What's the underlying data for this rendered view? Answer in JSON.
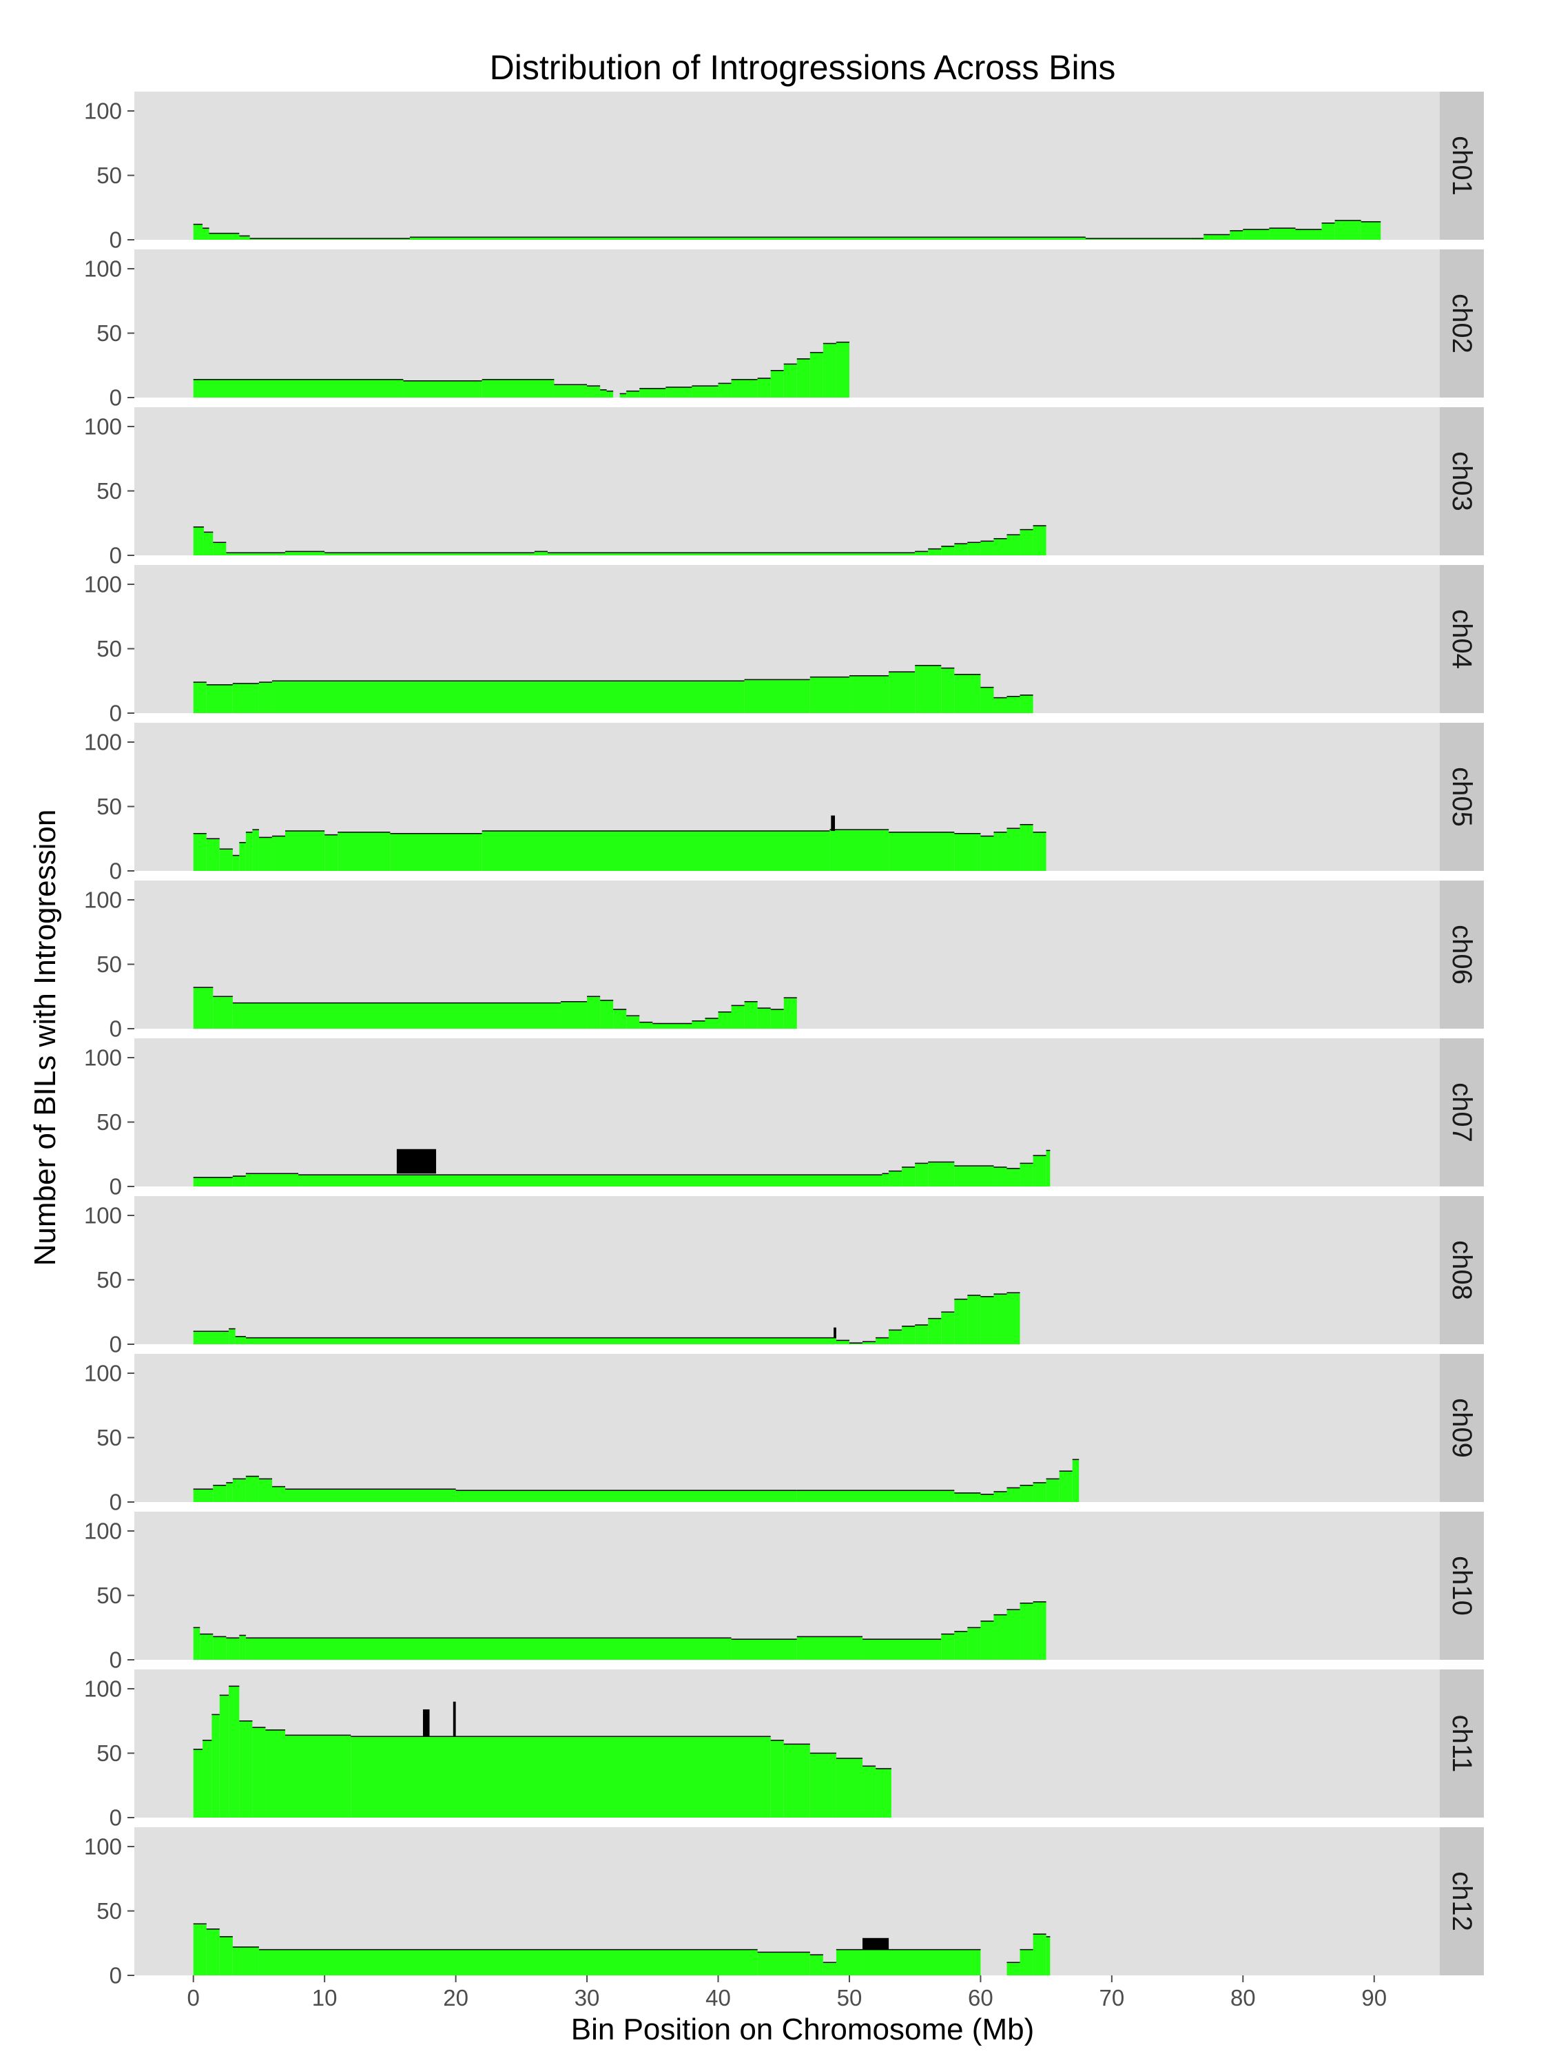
{
  "chart_data": {
    "type": "bar",
    "title": "Distribution of Introgressions Across Bins",
    "xlabel": "Bin Position on Chromosome (Mb)",
    "ylabel": "Number of BILs with Introgression",
    "xlim": [
      -4.5,
      95
    ],
    "ylim": [
      0,
      115
    ],
    "x_ticks": [
      0,
      10,
      20,
      30,
      40,
      50,
      60,
      70,
      80,
      90
    ],
    "y_ticks": [
      0,
      50,
      100
    ],
    "grid": false,
    "colors": {
      "panel": "#e0e0e0",
      "strip": "#c8c8c8",
      "bar": "#22ff10",
      "outline": "#000000"
    },
    "panels": [
      {
        "name": "ch01",
        "bins": [
          [
            0,
            0.7,
            12
          ],
          [
            0.7,
            1.2,
            9
          ],
          [
            1.2,
            3.5,
            5
          ],
          [
            3.5,
            4.3,
            3
          ],
          [
            4.3,
            16.5,
            1
          ],
          [
            16.5,
            68,
            2
          ],
          [
            68,
            76,
            1
          ],
          [
            76,
            77,
            1
          ],
          [
            77,
            79,
            4
          ],
          [
            79,
            80,
            7
          ],
          [
            80,
            82,
            8
          ],
          [
            82,
            84,
            9
          ],
          [
            84,
            86,
            8
          ],
          [
            86,
            87,
            13
          ],
          [
            87,
            89,
            15
          ],
          [
            89,
            90.5,
            14
          ]
        ]
      },
      {
        "name": "ch02",
        "bins": [
          [
            0,
            16,
            14
          ],
          [
            16,
            22,
            13
          ],
          [
            22,
            27.5,
            14
          ],
          [
            27.5,
            30,
            10
          ],
          [
            30,
            31,
            9
          ],
          [
            31,
            31.5,
            6
          ],
          [
            31.5,
            32,
            5
          ],
          [
            32.5,
            33,
            3
          ],
          [
            33,
            34,
            5
          ],
          [
            34,
            36,
            7
          ],
          [
            36,
            38,
            8
          ],
          [
            38,
            40,
            9
          ],
          [
            40,
            41,
            11
          ],
          [
            41,
            43,
            14
          ],
          [
            43,
            44,
            15
          ],
          [
            44,
            45,
            21
          ],
          [
            45,
            46,
            26
          ],
          [
            46,
            47,
            30
          ],
          [
            47,
            48,
            35
          ],
          [
            48,
            49,
            42
          ],
          [
            49,
            50,
            43
          ]
        ]
      },
      {
        "name": "ch03",
        "bins": [
          [
            0,
            0.8,
            22
          ],
          [
            0.8,
            1.5,
            18
          ],
          [
            1.5,
            2.5,
            10
          ],
          [
            2.5,
            7,
            2
          ],
          [
            7,
            10,
            3
          ],
          [
            10,
            26,
            2
          ],
          [
            26,
            27,
            3
          ],
          [
            27,
            55,
            2
          ],
          [
            55,
            56,
            3
          ],
          [
            56,
            57,
            5
          ],
          [
            57,
            58,
            7
          ],
          [
            58,
            59,
            9
          ],
          [
            59,
            60,
            10
          ],
          [
            60,
            61,
            11
          ],
          [
            61,
            62,
            13
          ],
          [
            62,
            63,
            16
          ],
          [
            63,
            64,
            20
          ],
          [
            64,
            65,
            23
          ]
        ]
      },
      {
        "name": "ch04",
        "bins": [
          [
            0,
            1,
            24
          ],
          [
            1,
            3,
            22
          ],
          [
            3,
            5,
            23
          ],
          [
            5,
            6,
            24
          ],
          [
            6,
            42,
            25
          ],
          [
            42,
            47,
            26
          ],
          [
            47,
            50,
            28
          ],
          [
            50,
            53,
            29
          ],
          [
            53,
            55,
            32
          ],
          [
            55,
            57,
            37
          ],
          [
            57,
            58,
            35
          ],
          [
            58,
            60,
            30
          ],
          [
            60,
            61,
            20
          ],
          [
            61,
            62,
            12
          ],
          [
            62,
            63,
            13
          ],
          [
            63,
            64,
            14
          ]
        ]
      },
      {
        "name": "ch05",
        "bins": [
          [
            0,
            1,
            29
          ],
          [
            1,
            2,
            25
          ],
          [
            2,
            3,
            17
          ],
          [
            3,
            3.5,
            12
          ],
          [
            3.5,
            4,
            22
          ],
          [
            4,
            4.5,
            30
          ],
          [
            4.5,
            5,
            32
          ],
          [
            5,
            6,
            26
          ],
          [
            6,
            7,
            27
          ],
          [
            7,
            10,
            31
          ],
          [
            10,
            11,
            28
          ],
          [
            11,
            15,
            30
          ],
          [
            15,
            22,
            29
          ],
          [
            22,
            48.5,
            31
          ],
          [
            48.5,
            53,
            32
          ],
          [
            53,
            58,
            30
          ],
          [
            58,
            60,
            29
          ],
          [
            60,
            61,
            27
          ],
          [
            61,
            62,
            30
          ],
          [
            62,
            63,
            33
          ],
          [
            63,
            64,
            36
          ],
          [
            64,
            65,
            30
          ]
        ]
      },
      {
        "name": "ch06",
        "bins": [
          [
            0,
            1.5,
            32
          ],
          [
            1.5,
            3,
            25
          ],
          [
            3,
            28,
            20
          ],
          [
            28,
            30,
            21
          ],
          [
            30,
            31,
            25
          ],
          [
            31,
            32,
            22
          ],
          [
            32,
            33,
            15
          ],
          [
            33,
            34,
            10
          ],
          [
            34,
            35,
            5
          ],
          [
            35,
            38,
            4
          ],
          [
            38,
            39,
            6
          ],
          [
            39,
            40,
            8
          ],
          [
            40,
            41,
            13
          ],
          [
            41,
            42,
            18
          ],
          [
            42,
            43,
            21
          ],
          [
            43,
            44,
            16
          ],
          [
            44,
            45,
            15
          ],
          [
            45,
            46,
            24
          ]
        ]
      },
      {
        "name": "ch07",
        "bins": [
          [
            0,
            3,
            7
          ],
          [
            3,
            4,
            8
          ],
          [
            4,
            8,
            10
          ],
          [
            8,
            52.5,
            9
          ],
          [
            52.5,
            53,
            10
          ],
          [
            53,
            54,
            12
          ],
          [
            54,
            55,
            15
          ],
          [
            55,
            56,
            18
          ],
          [
            56,
            58,
            19
          ],
          [
            58,
            61,
            16
          ],
          [
            61,
            62,
            15
          ],
          [
            62,
            63,
            14
          ],
          [
            63,
            64,
            18
          ],
          [
            64,
            65,
            24
          ],
          [
            65,
            65.3,
            28
          ]
        ]
      },
      {
        "name": "ch08",
        "bins": [
          [
            0,
            2.7,
            10
          ],
          [
            2.7,
            3.2,
            12
          ],
          [
            3.2,
            4,
            6
          ],
          [
            4,
            49,
            5
          ],
          [
            49,
            50,
            3
          ],
          [
            50,
            51,
            1
          ],
          [
            51,
            52,
            2
          ],
          [
            52,
            53,
            5
          ],
          [
            53,
            54,
            11
          ],
          [
            54,
            55,
            14
          ],
          [
            55,
            56,
            15
          ],
          [
            56,
            57,
            20
          ],
          [
            57,
            58,
            25
          ],
          [
            58,
            59,
            35
          ],
          [
            59,
            60,
            38
          ],
          [
            60,
            61,
            37
          ],
          [
            61,
            62,
            39
          ],
          [
            62,
            63,
            40
          ]
        ]
      },
      {
        "name": "ch09",
        "bins": [
          [
            0,
            1.5,
            10
          ],
          [
            1.5,
            2.5,
            13
          ],
          [
            2.5,
            3,
            15
          ],
          [
            3,
            4,
            18
          ],
          [
            4,
            5,
            20
          ],
          [
            5,
            6,
            18
          ],
          [
            6,
            7,
            12
          ],
          [
            7,
            20,
            10
          ],
          [
            20,
            46,
            9
          ],
          [
            46,
            58,
            9
          ],
          [
            58,
            60,
            7
          ],
          [
            60,
            61,
            6
          ],
          [
            61,
            62,
            8
          ],
          [
            62,
            63,
            11
          ],
          [
            63,
            64,
            13
          ],
          [
            64,
            65,
            15
          ],
          [
            65,
            66,
            18
          ],
          [
            66,
            67,
            24
          ],
          [
            67,
            67.5,
            33
          ]
        ]
      },
      {
        "name": "ch10",
        "bins": [
          [
            0,
            0.5,
            25
          ],
          [
            0.5,
            1.5,
            20
          ],
          [
            1.5,
            2.5,
            18
          ],
          [
            2.5,
            3.5,
            17
          ],
          [
            3.5,
            4,
            19
          ],
          [
            4,
            41,
            17
          ],
          [
            41,
            46,
            16
          ],
          [
            46,
            51,
            18
          ],
          [
            51,
            57,
            16
          ],
          [
            57,
            58,
            20
          ],
          [
            58,
            59,
            22
          ],
          [
            59,
            60,
            25
          ],
          [
            60,
            61,
            30
          ],
          [
            61,
            62,
            35
          ],
          [
            62,
            63,
            39
          ],
          [
            63,
            64,
            44
          ],
          [
            64,
            65,
            45
          ]
        ]
      },
      {
        "name": "ch11",
        "bins": [
          [
            0,
            0.7,
            53
          ],
          [
            0.7,
            1.4,
            60
          ],
          [
            1.4,
            2,
            80
          ],
          [
            2,
            2.7,
            95
          ],
          [
            2.7,
            3.5,
            102
          ],
          [
            3.5,
            4.5,
            75
          ],
          [
            4.5,
            5.5,
            70
          ],
          [
            5.5,
            7,
            68
          ],
          [
            7,
            12,
            64
          ],
          [
            12,
            44,
            63
          ],
          [
            44,
            45,
            60
          ],
          [
            45,
            47,
            57
          ],
          [
            47,
            49,
            50
          ],
          [
            49,
            51,
            46
          ],
          [
            51,
            52,
            40
          ],
          [
            52,
            53.2,
            38
          ]
        ]
      },
      {
        "name": "ch12",
        "bins": [
          [
            0,
            1,
            40
          ],
          [
            1,
            2,
            36
          ],
          [
            2,
            3,
            30
          ],
          [
            3,
            5,
            22
          ],
          [
            5,
            43,
            20
          ],
          [
            43,
            47,
            18
          ],
          [
            47,
            48,
            16
          ],
          [
            48,
            49,
            10
          ],
          [
            49,
            51,
            20
          ],
          [
            51,
            60,
            20
          ],
          [
            62,
            63,
            10
          ],
          [
            63,
            64,
            20
          ],
          [
            64,
            65,
            32
          ],
          [
            65,
            65.3,
            30
          ]
        ]
      }
    ],
    "black_marks": [
      {
        "panel": "ch07",
        "x0": 15.5,
        "x1": 18.5,
        "y0": 10,
        "y1": 29
      },
      {
        "panel": "ch11",
        "x0": 17.5,
        "x1": 18,
        "y0": 63,
        "y1": 84
      },
      {
        "panel": "ch11",
        "x0": 19.8,
        "x1": 20,
        "y0": 63,
        "y1": 90
      },
      {
        "panel": "ch12",
        "x0": 51,
        "x1": 53,
        "y0": 20,
        "y1": 29
      },
      {
        "panel": "ch05",
        "x0": 48.6,
        "x1": 48.9,
        "y0": 31,
        "y1": 43
      },
      {
        "panel": "ch08",
        "x0": 48.8,
        "x1": 49,
        "y0": 5,
        "y1": 13
      }
    ]
  }
}
